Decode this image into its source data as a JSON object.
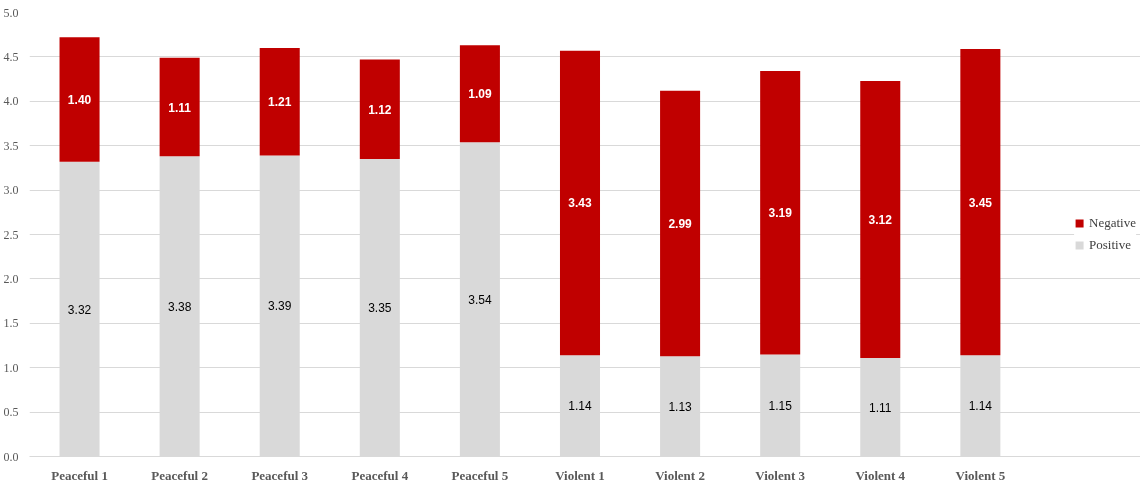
{
  "chart_data": {
    "type": "bar",
    "stacked": true,
    "categories": [
      "Peaceful 1",
      "Peaceful 2",
      "Peaceful 3",
      "Peaceful 4",
      "Peaceful 5",
      "Violent 1",
      "Violent 2",
      "Violent 3",
      "Violent 4",
      "Violent 5"
    ],
    "series": [
      {
        "name": "Positive",
        "color": "#d9d9d9",
        "values": [
          3.32,
          3.38,
          3.39,
          3.35,
          3.54,
          1.14,
          1.13,
          1.15,
          1.11,
          1.14
        ],
        "value_labels": [
          "3.32",
          "3.38",
          "3.39",
          "3.35",
          "3.54",
          "1.14",
          "1.13",
          "1.15",
          "1.11",
          "1.14"
        ]
      },
      {
        "name": "Negative",
        "color": "#c00000",
        "values": [
          1.4,
          1.11,
          1.21,
          1.12,
          1.09,
          3.43,
          2.99,
          3.19,
          3.12,
          3.45
        ],
        "value_labels": [
          "1.40",
          "1.11",
          "1.21",
          "1.12",
          "1.09",
          "3.43",
          "2.99",
          "3.19",
          "3.12",
          "3.45"
        ]
      }
    ],
    "ylim": [
      0,
      5
    ],
    "yticks": [
      {
        "value": 0,
        "label": "0.0"
      },
      {
        "value": 0.5,
        "label": "0.5"
      },
      {
        "value": 1,
        "label": "1.0"
      },
      {
        "value": 1.5,
        "label": "1.5"
      },
      {
        "value": 2,
        "label": "2.0"
      },
      {
        "value": 2.5,
        "label": "2.5"
      },
      {
        "value": 3,
        "label": "3.0"
      },
      {
        "value": 3.5,
        "label": "3.5"
      },
      {
        "value": 4,
        "label": "4.0"
      },
      {
        "value": 4.5,
        "label": "4.5"
      },
      {
        "value": 5,
        "label": "5.0"
      }
    ],
    "grid": "y",
    "legend": "right"
  }
}
